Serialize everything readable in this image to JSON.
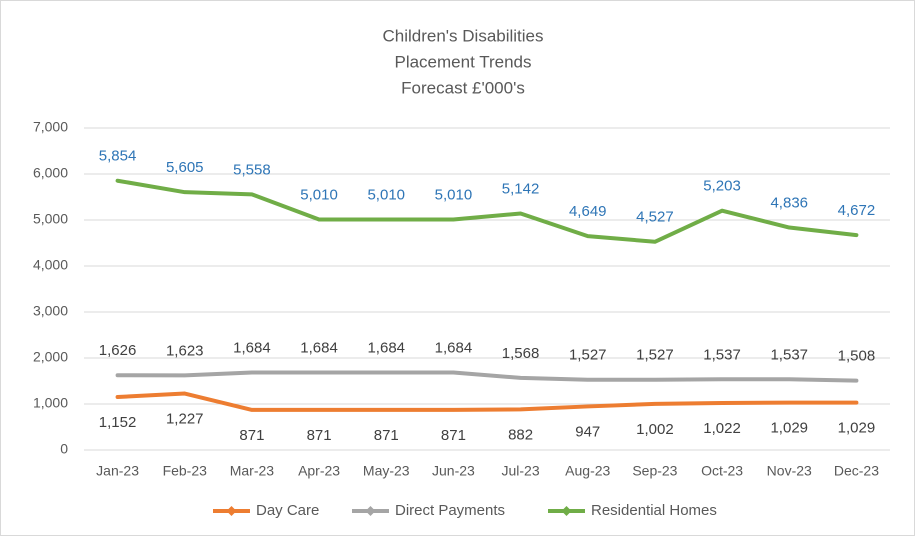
{
  "chart_data": {
    "type": "line",
    "title": [
      "Children's Disabilities",
      "Placement Trends",
      "Forecast £'000's"
    ],
    "categories": [
      "Jan-23",
      "Feb-23",
      "Mar-23",
      "Apr-23",
      "May-23",
      "Jun-23",
      "Jul-23",
      "Aug-23",
      "Sep-23",
      "Oct-23",
      "Nov-23",
      "Dec-23"
    ],
    "series": [
      {
        "name": "Day Care",
        "color": "#ed7d31",
        "label_color": "#404040",
        "label_position": "below",
        "values": [
          1152,
          1227,
          871,
          871,
          871,
          871,
          882,
          947,
          1002,
          1022,
          1029,
          1029
        ],
        "value_labels": [
          "1,152",
          "1,227",
          "871",
          "871",
          "871",
          "871",
          "882",
          "947",
          "1,002",
          "1,022",
          "1,029",
          "1,029"
        ]
      },
      {
        "name": "Direct Payments",
        "color": "#a5a5a5",
        "label_color": "#404040",
        "label_position": "above",
        "values": [
          1626,
          1623,
          1684,
          1684,
          1684,
          1684,
          1568,
          1527,
          1527,
          1537,
          1537,
          1508
        ],
        "value_labels": [
          "1,626",
          "1,623",
          "1,684",
          "1,684",
          "1,684",
          "1,684",
          "1,568",
          "1,527",
          "1,527",
          "1,537",
          "1,537",
          "1,508"
        ]
      },
      {
        "name": "Residential Homes",
        "color": "#70ad47",
        "label_color": "#2e75b6",
        "label_position": "above",
        "values": [
          5854,
          5605,
          5558,
          5010,
          5010,
          5010,
          5142,
          4649,
          4527,
          5203,
          4836,
          4672
        ],
        "value_labels": [
          "5,854",
          "5,605",
          "5,558",
          "5,010",
          "5,010",
          "5,010",
          "5,142",
          "4,649",
          "4,527",
          "5,203",
          "4,836",
          "4,672"
        ]
      }
    ],
    "ylim": [
      0,
      7000
    ],
    "yticks": [
      0,
      {
        "value": 1000,
        "label": "1,000"
      },
      {
        "value": 2000,
        "label": "2,000"
      },
      {
        "value": 3000,
        "label": "3,000"
      },
      {
        "value": 4000,
        "label": "4,000"
      },
      {
        "value": 5000,
        "label": "5,000"
      },
      {
        "value": 6000,
        "label": "6,000"
      },
      {
        "value": 7000,
        "label": "7,000"
      }
    ],
    "grid": true,
    "legend": "bottom"
  }
}
